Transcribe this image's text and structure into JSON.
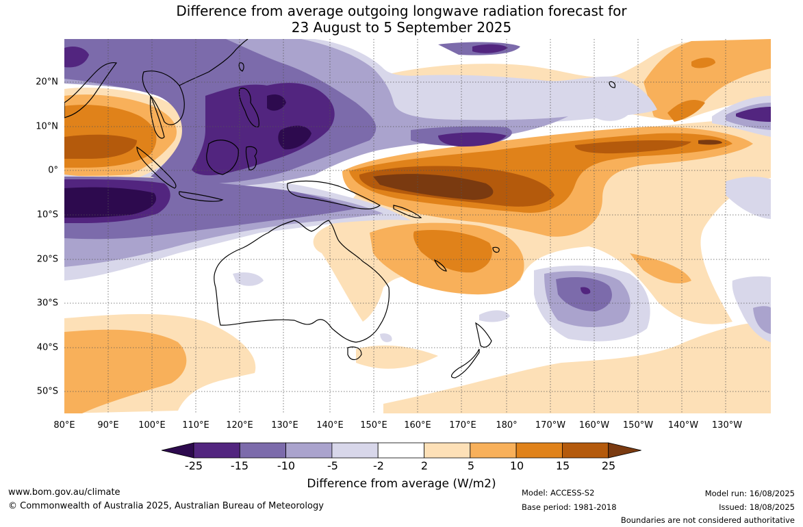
{
  "title": {
    "line1": "Difference from average outgoing longwave radiation forecast for",
    "line2": "23 August to 5 September 2025"
  },
  "map": {
    "longitude_labels": [
      "80°E",
      "90°E",
      "100°E",
      "110°E",
      "120°E",
      "130°E",
      "140°E",
      "150°E",
      "160°E",
      "170°E",
      "180°",
      "170°W",
      "160°W",
      "150°W",
      "140°W",
      "130°W"
    ],
    "latitude_labels": [
      "20°N",
      "10°N",
      "0°",
      "10°S",
      "20°S",
      "30°S",
      "40°S",
      "50°S"
    ]
  },
  "colorbar": {
    "tick_labels": [
      "-25",
      "-15",
      "-10",
      "-5",
      "-2",
      "2",
      "5",
      "10",
      "15",
      "25"
    ],
    "colors": [
      "#2d0a4e",
      "#52257f",
      "#7c6bab",
      "#aaa3cd",
      "#d8d7ea",
      "#ffffff",
      "#fde0b7",
      "#f8b05a",
      "#e0821a",
      "#b45a0c",
      "#7a3a10"
    ],
    "title": "Difference from average (W/m2)"
  },
  "footer": {
    "website": "www.bom.gov.au/climate",
    "copyright": "© Commonwealth of Australia 2025, Australian Bureau of Meteorology",
    "model": "Model: ACCESS-S2",
    "base_period": "Base period: 1981-2018",
    "model_run": "Model run: 16/08/2025",
    "issued": "Issued: 18/08/2025",
    "disclaimer": "Boundaries are not considered authoritative"
  }
}
